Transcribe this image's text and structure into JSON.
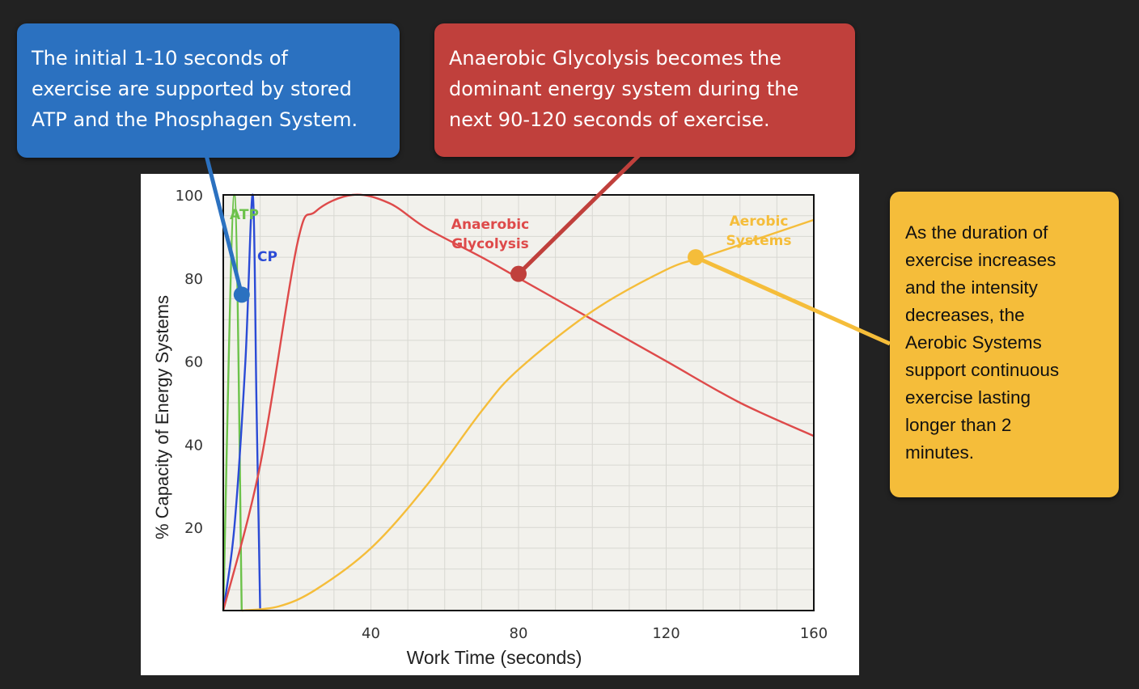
{
  "callouts": {
    "phosphagen": {
      "text": "The initial 1-10 seconds of\nexercise are supported by stored\nATP and the Phosphagen System.",
      "color": "#2b71c0"
    },
    "glycolysis": {
      "text": "Anaerobic Glycolysis becomes the\ndominant energy system during the\nnext  90-120 seconds of exercise.",
      "color": "#c0403c"
    },
    "aerobic": {
      "text": "As the duration of\nexercise increases\nand the intensity\ndecreases, the\nAerobic Systems\nsupport continuous\nexercise lasting\nlonger than 2\nminutes.",
      "color": "#f5bd3a"
    }
  },
  "chart_data": {
    "type": "line",
    "xlabel": "Work Time (seconds)",
    "ylabel": "% Capacity of Energy Systems",
    "xlim": [
      0,
      160
    ],
    "ylim": [
      0,
      100
    ],
    "x_ticks": [
      40,
      80,
      120,
      160
    ],
    "y_ticks": [
      20,
      40,
      60,
      80,
      100
    ],
    "grid": true,
    "series": [
      {
        "name": "ATP",
        "color": "#6cc24a",
        "points": [
          [
            0,
            0
          ],
          [
            3,
            100
          ],
          [
            5,
            0
          ]
        ]
      },
      {
        "name": "CP",
        "color": "#2b4bd6",
        "points": [
          [
            0,
            0
          ],
          [
            3,
            20
          ],
          [
            6,
            60
          ],
          [
            8,
            100
          ],
          [
            9,
            50
          ],
          [
            10,
            0
          ]
        ]
      },
      {
        "name": "Anaerobic Glycolysis",
        "color": "#de4a4a",
        "points": [
          [
            0,
            0
          ],
          [
            10,
            35
          ],
          [
            20,
            88
          ],
          [
            25,
            96
          ],
          [
            35,
            100
          ],
          [
            45,
            98
          ],
          [
            55,
            92
          ],
          [
            70,
            85
          ],
          [
            80,
            80
          ],
          [
            100,
            70
          ],
          [
            120,
            60
          ],
          [
            140,
            50
          ],
          [
            160,
            42
          ]
        ]
      },
      {
        "name": "Aerobic Systems",
        "color": "#f5bd3a",
        "points": [
          [
            5,
            0
          ],
          [
            15,
            1
          ],
          [
            25,
            5
          ],
          [
            40,
            15
          ],
          [
            55,
            30
          ],
          [
            70,
            48
          ],
          [
            80,
            58
          ],
          [
            100,
            72
          ],
          [
            120,
            82
          ],
          [
            130,
            85
          ],
          [
            140,
            88
          ],
          [
            160,
            94
          ]
        ]
      }
    ],
    "annotations": [
      {
        "text": "ATP",
        "color": "#6cc24a"
      },
      {
        "text": "CP",
        "color": "#2b4bd6"
      },
      {
        "text": "Anaerobic\nGlycolysis",
        "color": "#de4a4a"
      },
      {
        "text": "Aerobic\nSystems",
        "color": "#f5bd3a"
      }
    ]
  }
}
